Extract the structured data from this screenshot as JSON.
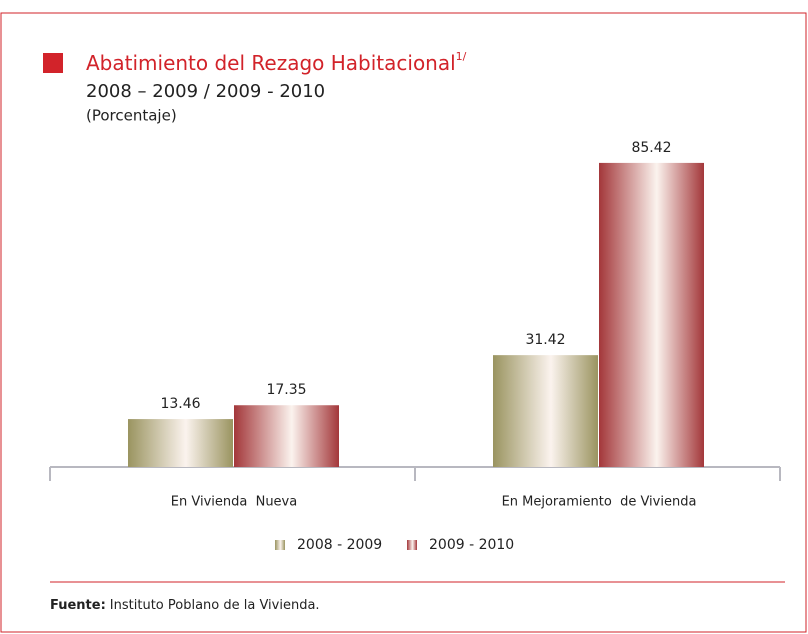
{
  "chart_data": {
    "type": "bar",
    "title": "Abatimiento del Rezago Habitacional",
    "title_note": "1/",
    "subtitle": "2008 – 2009 / 2009 - 2010",
    "units": "(Porcentaje)",
    "categories": [
      "En Vivienda  Nueva",
      "En Mejoramiento  de Vivienda"
    ],
    "series": [
      {
        "name": "2008 - 2009",
        "color": "#9a9460",
        "values": [
          13.46,
          31.42
        ]
      },
      {
        "name": "2009 - 2010",
        "color": "#a3373a",
        "values": [
          17.35,
          85.42
        ]
      }
    ],
    "ylim": [
      0,
      100
    ],
    "source_label": "Fuente:",
    "source": "Instituto Poblano de la Vivienda."
  }
}
